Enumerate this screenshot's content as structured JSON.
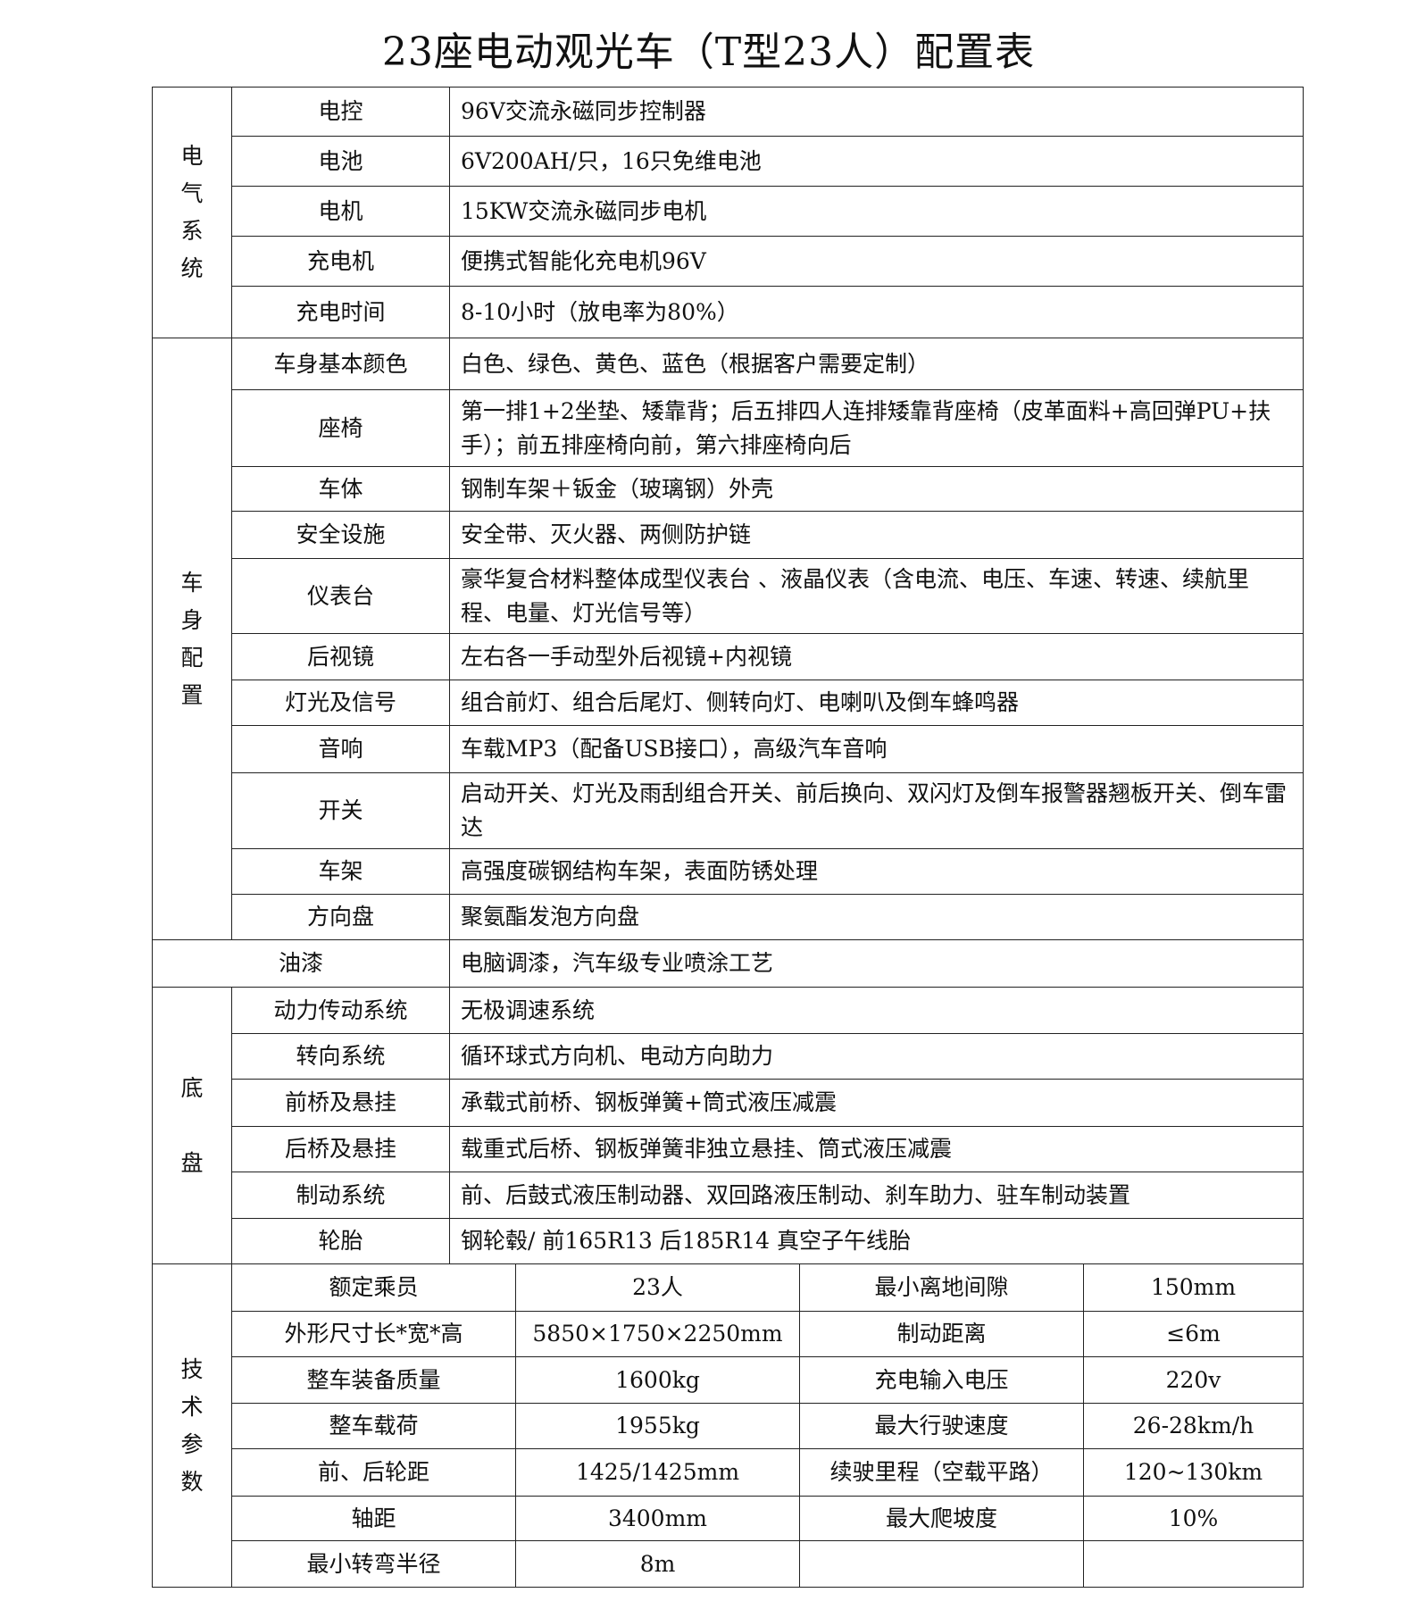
{
  "title": "23座电动观光车（T型23人）配置表",
  "sections": [
    {
      "name": [
        "电",
        "气",
        "系",
        "统"
      ],
      "rows": [
        {
          "label": "电控",
          "value": "96V交流永磁同步控制器"
        },
        {
          "label": "电池",
          "value": "6V200AH/只，16只免维电池"
        },
        {
          "label": "电机",
          "value": "15KW交流永磁同步电机"
        },
        {
          "label": "充电机",
          "value": "便携式智能化充电机96V"
        },
        {
          "label": "充电时间",
          "value": "8-10小时（放电率为80%）"
        }
      ]
    },
    {
      "name": [
        "车",
        "身",
        "配",
        "置"
      ],
      "rows": [
        {
          "label": "车身基本颜色",
          "value": "白色、绿色、黄色、蓝色（根据客户需要定制）"
        },
        {
          "label": "座椅",
          "value": "第一排1+2坐垫、矮靠背；后五排四人连排矮靠背座椅（皮革面料+高回弹PU+扶手）；前五排座椅向前，第六排座椅向后"
        },
        {
          "label": "车体",
          "value": "钢制车架＋钣金（玻璃钢）外壳"
        },
        {
          "label": "安全设施",
          "value": "安全带、灭火器、两侧防护链"
        },
        {
          "label": "仪表台",
          "value": "豪华复合材料整体成型仪表台 、液晶仪表（含电流、电压、车速、转速、续航里程、电量、灯光信号等）"
        },
        {
          "label": "后视镜",
          "value": "左右各一手动型外后视镜+内视镜"
        },
        {
          "label": "灯光及信号",
          "value": "组合前灯、组合后尾灯、侧转向灯、电喇叭及倒车蜂鸣器"
        },
        {
          "label": "音响",
          "value": "车载MP3（配备USB接口），高级汽车音响"
        },
        {
          "label": "开关",
          "value": "启动开关、灯光及雨刮组合开关、前后换向、双闪灯及倒车报警器翘板开关、倒车雷达"
        },
        {
          "label": "车架",
          "value": "高强度碳钢结构车架，表面防锈处理"
        },
        {
          "label": "方向盘",
          "value": "聚氨酯发泡方向盘"
        }
      ]
    },
    {
      "paint": {
        "label": "油漆",
        "value": "电脑调漆，汽车级专业喷涂工艺"
      }
    },
    {
      "name": [
        "底",
        "盘"
      ],
      "rows": [
        {
          "label": "动力传动系统",
          "value": "无极调速系统"
        },
        {
          "label": "转向系统",
          "value": "循环球式方向机、电动方向助力"
        },
        {
          "label": "前桥及悬挂",
          "value": "承载式前桥、钢板弹簧+筒式液压减震"
        },
        {
          "label": "后桥及悬挂",
          "value": "载重式后桥、钢板弹簧非独立悬挂、筒式液压减震"
        },
        {
          "label": "制动系统",
          "value": " 前、后鼓式液压制动器、双回路液压制动、刹车助力、驻车制动装置"
        },
        {
          "label": "轮胎",
          "value": "钢轮毂/ 前165R13 后185R14  真空子午线胎"
        }
      ]
    }
  ],
  "tech": {
    "name": [
      "技",
      "术",
      "参",
      "数"
    ],
    "rows": [
      [
        "额定乘员",
        "23人",
        "最小离地间隙",
        "150mm"
      ],
      [
        "外形尺寸长*宽*高",
        "5850×1750×2250mm",
        "制动距离",
        "≤6m"
      ],
      [
        "整车装备质量",
        "1600kg",
        "充电输入电压",
        "220v"
      ],
      [
        "整车载荷",
        "1955kg",
        "最大行驶速度",
        "26-28km/h"
      ],
      [
        "前、后轮距",
        "1425/1425mm",
        "续驶里程（空载平路）",
        "120~130km"
      ],
      [
        "轴距",
        "3400mm",
        "最大爬坡度",
        "10%"
      ],
      [
        "最小转弯半径",
        "8m",
        "",
        ""
      ]
    ]
  }
}
